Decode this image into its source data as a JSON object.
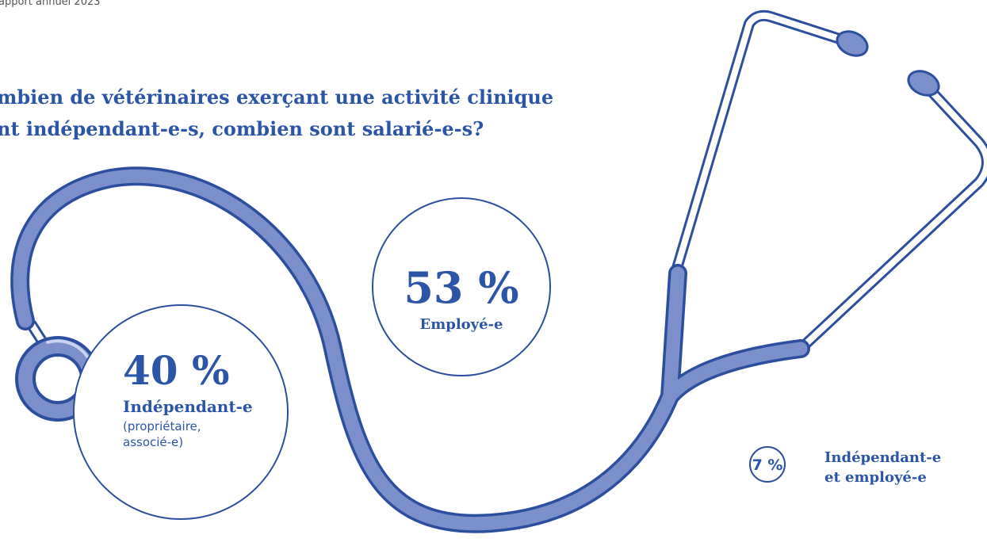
{
  "header": {
    "text": "apport annuel 2023"
  },
  "title": {
    "lines": [
      "mbien de vétérinaires exerçant une activité clinique",
      "nt indépendant-e-s, combien sont salarié-e-s?"
    ]
  },
  "items": [
    {
      "value": "40 %",
      "label": "Indépendant-e",
      "note": [
        "(propriétaire,",
        "associé-e)"
      ]
    },
    {
      "value": "53 %",
      "label": "Employé-e"
    },
    {
      "value": "7 %",
      "label": [
        "Indépendant-e",
        "et employé-e"
      ]
    }
  ]
}
